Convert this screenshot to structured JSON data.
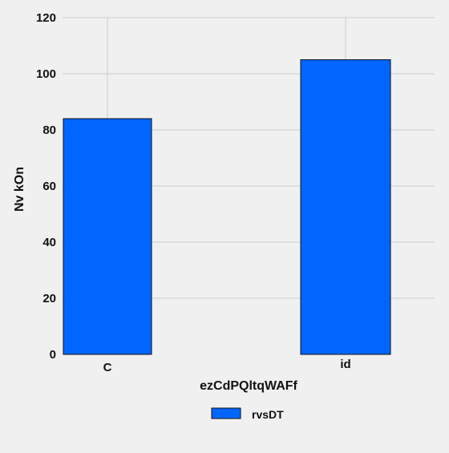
{
  "chart_data": {
    "type": "bar",
    "title": "",
    "xlabel": "ezCdPQltqWAFf",
    "ylabel": "Nv kOn",
    "categories": [
      "C",
      "id"
    ],
    "series": [
      {
        "name": "rvsDT",
        "values": [
          84,
          105
        ],
        "color": "#0066ff"
      }
    ],
    "ylim": [
      0,
      120
    ],
    "yticks": [
      0,
      20,
      40,
      60,
      80,
      100,
      120
    ],
    "grid": true,
    "legend": {
      "position": "bottom-center"
    },
    "colors": {
      "background": "#f0f0f0",
      "grid": "#cbcbcb",
      "bar_edge": "#111111",
      "bar_fill": "#0066ff"
    }
  }
}
